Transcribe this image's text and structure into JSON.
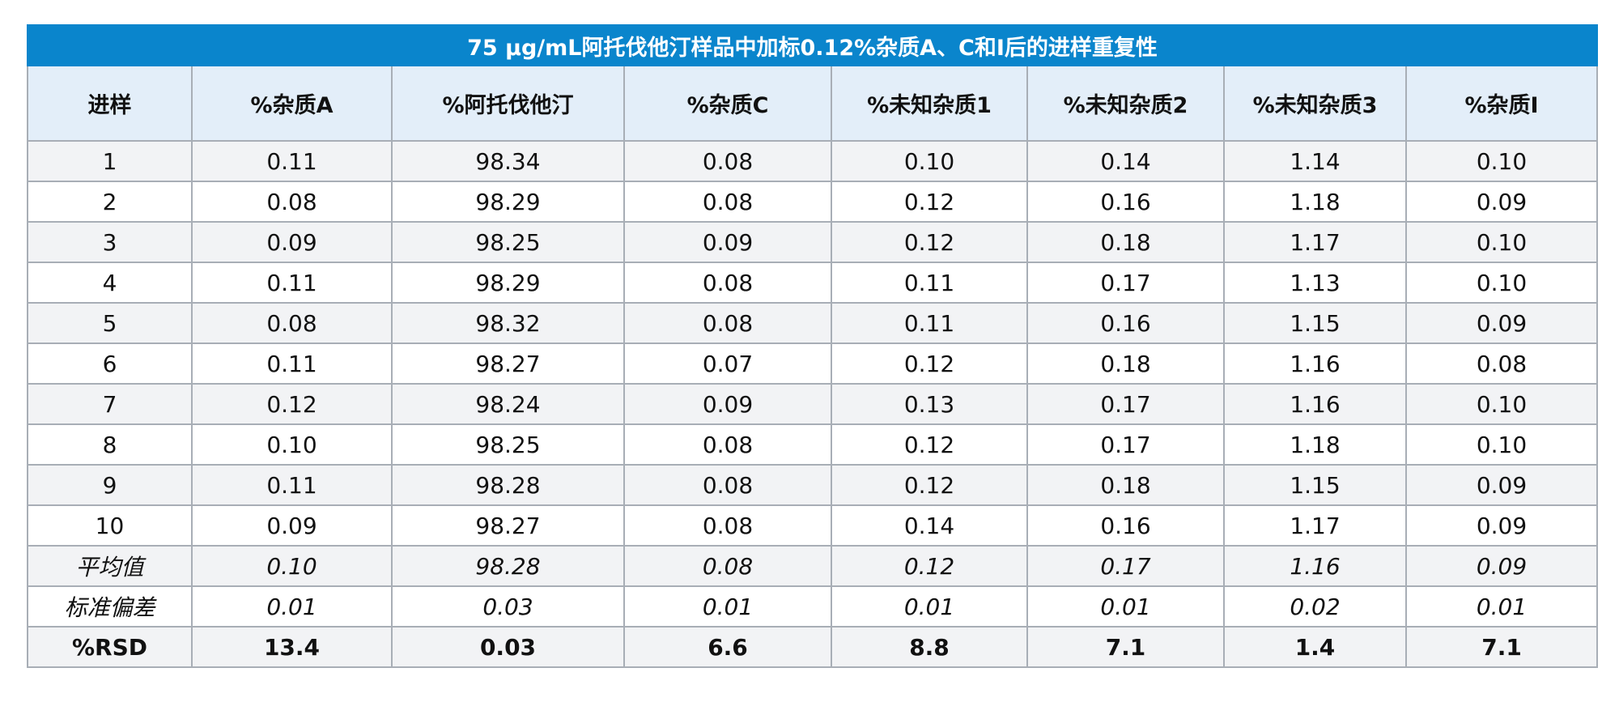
{
  "table": {
    "title": "75 µg/mL阿托伐他汀样品中加标0.12%杂质A、C和I后的进样重复性",
    "headers": [
      "进样",
      "%杂质A",
      "%阿托伐他汀",
      "%杂质C",
      "%未知杂质1",
      "%未知杂质2",
      "%未知杂质3",
      "%杂质I"
    ],
    "rows": [
      [
        "1",
        "0.11",
        "98.34",
        "0.08",
        "0.10",
        "0.14",
        "1.14",
        "0.10"
      ],
      [
        "2",
        "0.08",
        "98.29",
        "0.08",
        "0.12",
        "0.16",
        "1.18",
        "0.09"
      ],
      [
        "3",
        "0.09",
        "98.25",
        "0.09",
        "0.12",
        "0.18",
        "1.17",
        "0.10"
      ],
      [
        "4",
        "0.11",
        "98.29",
        "0.08",
        "0.11",
        "0.17",
        "1.13",
        "0.10"
      ],
      [
        "5",
        "0.08",
        "98.32",
        "0.08",
        "0.11",
        "0.16",
        "1.15",
        "0.09"
      ],
      [
        "6",
        "0.11",
        "98.27",
        "0.07",
        "0.12",
        "0.18",
        "1.16",
        "0.08"
      ],
      [
        "7",
        "0.12",
        "98.24",
        "0.09",
        "0.13",
        "0.17",
        "1.16",
        "0.10"
      ],
      [
        "8",
        "0.10",
        "98.25",
        "0.08",
        "0.12",
        "0.17",
        "1.18",
        "0.10"
      ],
      [
        "9",
        "0.11",
        "98.28",
        "0.08",
        "0.12",
        "0.18",
        "1.15",
        "0.09"
      ],
      [
        "10",
        "0.09",
        "98.27",
        "0.08",
        "0.14",
        "0.16",
        "1.17",
        "0.09"
      ]
    ],
    "stats": [
      [
        "平均值",
        "0.10",
        "98.28",
        "0.08",
        "0.12",
        "0.17",
        "1.16",
        "0.09"
      ],
      [
        "标准偏差",
        "0.01",
        "0.03",
        "0.01",
        "0.01",
        "0.01",
        "0.02",
        "0.01"
      ]
    ],
    "rsd": [
      "%RSD",
      "13.4",
      "0.03",
      "6.6",
      "8.8",
      "7.1",
      "1.4",
      "7.1"
    ]
  },
  "colors": {
    "title_bg": "#0a85cc",
    "header_bg": "#e3eef9",
    "shade_row_bg": "#f2f3f5",
    "border": "#a8aeb6"
  }
}
